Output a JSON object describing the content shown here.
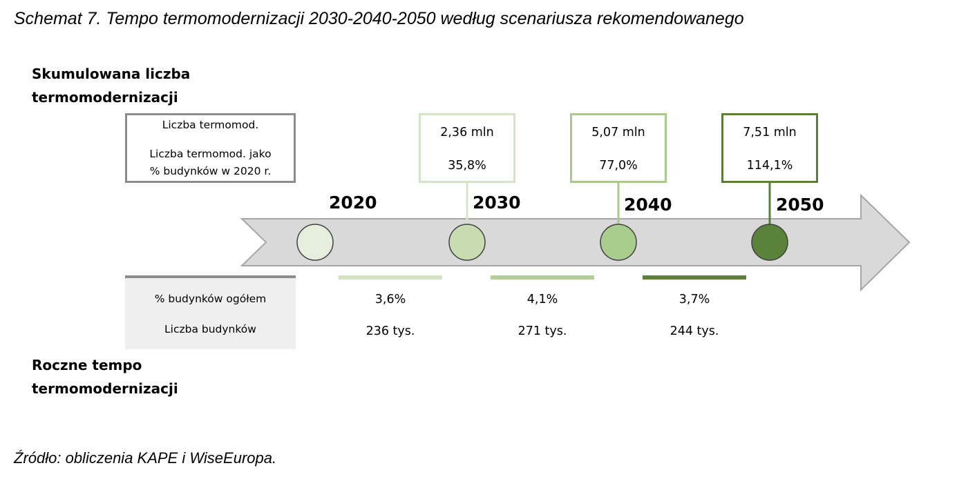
{
  "title": "Schemat 7. Tempo termomodernizacji 2030-2040-2050 według scenariusza rekomendowanego",
  "source": "Źródło: obliczenia KAPE i WiseEuropa.",
  "cumulative": {
    "heading_line1": "Skumulowana liczba",
    "heading_line2": "termomodernizacji",
    "legend": {
      "line1": "Liczba termomod.",
      "line2": "Liczba termomod. jako",
      "line3": "% budynków w 2020 r."
    },
    "milestones": [
      {
        "year": "2030",
        "count": "2,36 mln",
        "percent": "35,8%",
        "color": "#d5e4c7"
      },
      {
        "year": "2040",
        "count": "5,07 mln",
        "percent": "77,0%",
        "color": "#a9c98e"
      },
      {
        "year": "2050",
        "count": "7,51 mln",
        "percent": "114,1%",
        "color": "#5a8038"
      }
    ]
  },
  "timeline": {
    "start_year": "2020",
    "arrow_color": "#d9d9d9",
    "arrow_stroke": "#a6a6a6",
    "node_colors": [
      "#e6efdd",
      "#c7dcb1",
      "#a9cd8d",
      "#5a823b"
    ]
  },
  "annual": {
    "heading_line1": "Roczne tempo",
    "heading_line2": "termomodernizacji",
    "legend": {
      "line1": "% budynków ogółem",
      "line2": "Liczba budynków"
    },
    "periods": [
      {
        "percent": "3,6%",
        "count": "236 tys.",
        "color": "#d3e3c4"
      },
      {
        "percent": "4,1%",
        "count": "271 tys.",
        "color": "#b2cf9a"
      },
      {
        "percent": "3,7%",
        "count": "244 tys.",
        "color": "#5d7f3d"
      }
    ]
  }
}
